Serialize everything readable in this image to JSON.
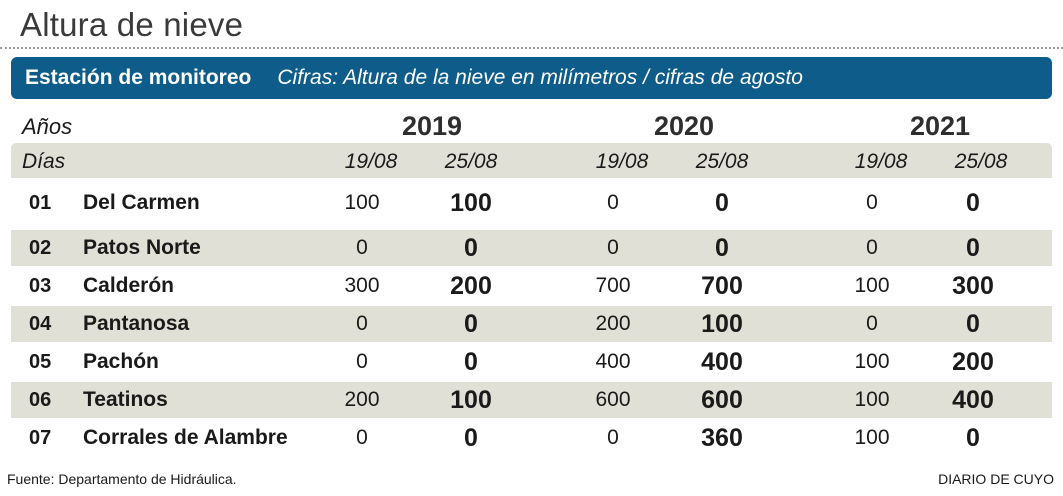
{
  "title": "Altura de nieve",
  "banner": {
    "lead": "Estación de monitoreo",
    "desc": "Cifras: Altura de la nieve en milímetros / cifras de agosto"
  },
  "chart_data": {
    "type": "table",
    "title": "Altura de nieve",
    "years_label": "Años",
    "days_label": "Días",
    "years": [
      "2019",
      "2020",
      "2021"
    ],
    "dates": [
      "19/08",
      "25/08"
    ],
    "rows": [
      {
        "num": "01",
        "name": "Del Carmen",
        "values": [
          100,
          100,
          0,
          0,
          0,
          0
        ]
      },
      {
        "num": "02",
        "name": "Patos Norte",
        "values": [
          0,
          0,
          0,
          0,
          0,
          0
        ]
      },
      {
        "num": "03",
        "name": "Calderón",
        "values": [
          300,
          200,
          700,
          700,
          100,
          300
        ]
      },
      {
        "num": "04",
        "name": "Pantanosa",
        "values": [
          0,
          0,
          200,
          100,
          0,
          0
        ]
      },
      {
        "num": "05",
        "name": "Pachón",
        "values": [
          0,
          0,
          400,
          400,
          100,
          200
        ]
      },
      {
        "num": "06",
        "name": "Teatinos",
        "values": [
          200,
          100,
          600,
          600,
          100,
          400
        ]
      },
      {
        "num": "07",
        "name": "Corrales de Alambre",
        "values": [
          0,
          0,
          0,
          360,
          100,
          0
        ]
      }
    ]
  },
  "footer": {
    "source": "Fuente: Departamento de Hidráulica.",
    "brand": "DIARIO DE CUYO"
  },
  "colors": {
    "banner": "#0e5c8a",
    "row_shade": "#e1e0d6"
  }
}
